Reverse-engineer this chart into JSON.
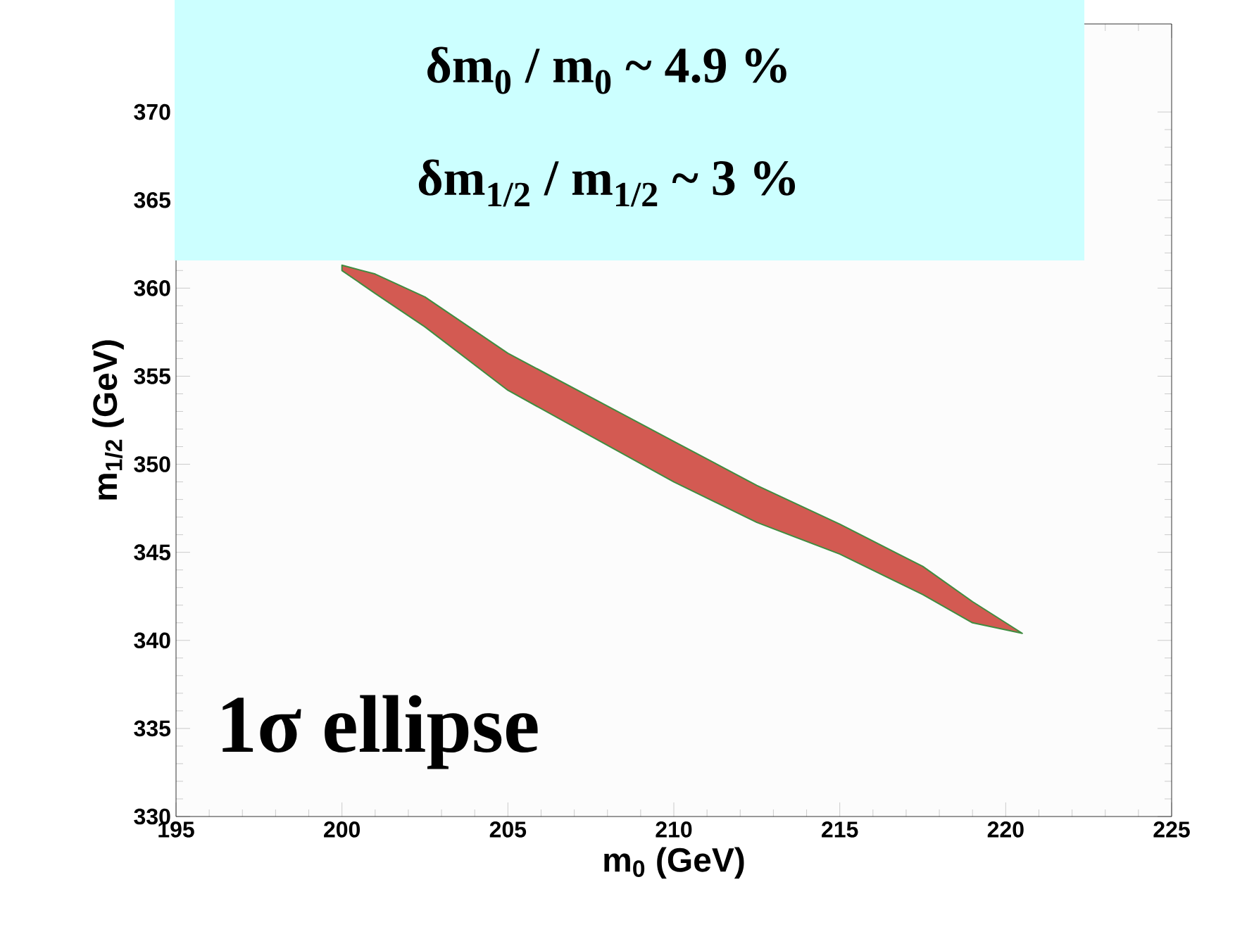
{
  "chart_data": {
    "type": "area",
    "xlabel": "m$_{0}$ (GeV)",
    "ylabel": "m$_{1/2}$ (GeV)",
    "xlim": [
      195,
      225
    ],
    "xticks": [
      195,
      200,
      205,
      210,
      215,
      220,
      225
    ],
    "ylim": [
      330,
      375
    ],
    "yticks": [
      330,
      335,
      340,
      345,
      350,
      355,
      360,
      365,
      370
    ],
    "series": [
      {
        "color": "#d35a52",
        "x": [
          200,
          201,
          202.5,
          205,
          207.5,
          210,
          212.5,
          215,
          217.5,
          219,
          220.5,
          219,
          217.5,
          215,
          212.5,
          210,
          207.5,
          205,
          202.5,
          201,
          200
        ],
        "values": [
          361.3,
          360.8,
          359.5,
          356.3,
          353.8,
          351.3,
          348.8,
          346.6,
          344.2,
          342.2,
          340.4,
          341.0,
          342.6,
          344.9,
          346.7,
          349.0,
          351.6,
          354.2,
          357.8,
          359.7,
          361.0
        ]
      }
    ],
    "annotations": [
      "δm$_{0}$ /  m$_{0}$ ~ 4.9 %",
      "δm$_{1/2}$ /  m$_{1/2}$  ~ 3 %",
      "1σ ellipse"
    ]
  }
}
